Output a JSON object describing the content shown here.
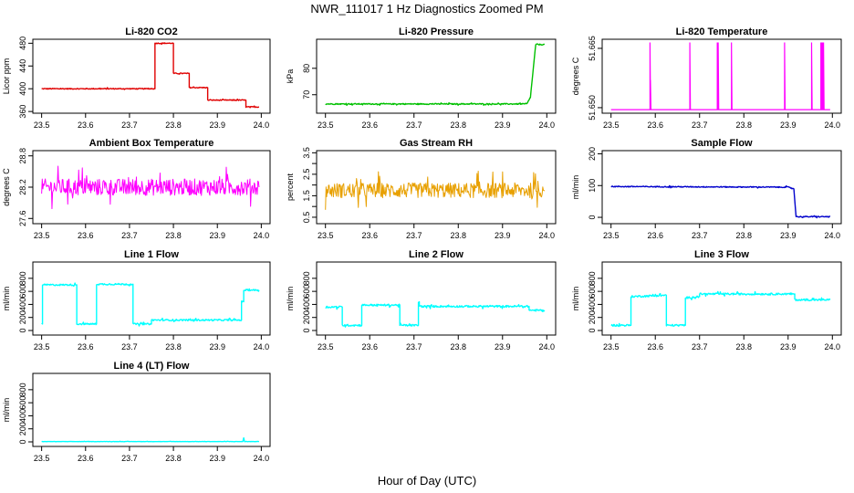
{
  "title": "NWR_111017  1 Hz Diagnostics Zoomed PM",
  "xlabel": "Hour of Day (UTC)",
  "colors": {
    "red": "#e00000",
    "green": "#00c000",
    "magenta": "#ff00ff",
    "orange": "#e8a000",
    "blue": "#0000cc",
    "cyan": "#00ffff"
  },
  "chart_data": [
    {
      "id": "co2",
      "type": "line",
      "title": "Li-820 CO2",
      "ylabel": "Licor ppm",
      "xlim": [
        23.5,
        24.0
      ],
      "ylim": [
        357,
        487
      ],
      "xticks": [
        "23.5",
        "23.6",
        "23.7",
        "23.8",
        "23.9",
        "24.0"
      ],
      "yticks": [
        {
          "v": 360,
          "label": "360"
        },
        {
          "v": 400,
          "label": "400"
        },
        {
          "v": 440,
          "label": "440"
        },
        {
          "v": 480,
          "label": "480"
        }
      ],
      "color": "red",
      "noise": 0.8,
      "series": [
        {
          "x": [
            23.5,
            23.758,
            23.758,
            23.8,
            23.8,
            23.836,
            23.836,
            23.878,
            23.878,
            23.965,
            23.965,
            23.995
          ],
          "y": [
            400,
            400,
            480,
            480,
            427,
            427,
            402,
            402,
            380,
            380,
            368,
            368
          ]
        }
      ]
    },
    {
      "id": "pressure",
      "type": "line",
      "title": "Li-820 Pressure",
      "ylabel": "kPa",
      "xlim": [
        23.5,
        24.0
      ],
      "ylim": [
        63,
        91
      ],
      "xticks": [
        "23.5",
        "23.6",
        "23.7",
        "23.8",
        "23.9",
        "24.0"
      ],
      "yticks": [
        {
          "v": 70,
          "label": "70"
        },
        {
          "v": 80,
          "label": "80"
        }
      ],
      "color": "green",
      "noise": 0.2,
      "series": [
        {
          "x": [
            23.5,
            23.955,
            23.963,
            23.975,
            23.995
          ],
          "y": [
            66.5,
            66.5,
            69,
            89,
            89
          ]
        }
      ]
    },
    {
      "id": "licor_temp",
      "type": "line",
      "title": "Li-820 Temperature",
      "ylabel": "degrees C",
      "xlim": [
        23.5,
        24.0
      ],
      "ylim": [
        51.6486,
        51.6673
      ],
      "xticks": [
        "23.5",
        "23.6",
        "23.7",
        "23.8",
        "23.9",
        "24.0"
      ],
      "yticks": [
        {
          "v": 51.65,
          "label": "51.650"
        },
        {
          "v": 51.665,
          "label": "51.665"
        }
      ],
      "color": "magenta",
      "noise": 0,
      "baseline": 51.6495,
      "spikes": [
        {
          "x": 23.588,
          "y": 51.6665
        },
        {
          "x": 23.589,
          "y": 51.657
        },
        {
          "x": 23.678,
          "y": 51.6665
        },
        {
          "x": 23.74,
          "y": 51.6665
        },
        {
          "x": 23.742,
          "y": 51.6665
        },
        {
          "x": 23.772,
          "y": 51.6665
        },
        {
          "x": 23.892,
          "y": 51.6665
        },
        {
          "x": 23.953,
          "y": 51.6665
        },
        {
          "x": 23.974,
          "y": 51.6665
        },
        {
          "x": 23.976,
          "y": 51.6665
        },
        {
          "x": 23.978,
          "y": 51.6665
        },
        {
          "x": 23.98,
          "y": 51.6665
        }
      ]
    },
    {
      "id": "ambient_temp",
      "type": "line",
      "title": "Ambient Box Temperature",
      "ylabel": "degrees C",
      "xlim": [
        23.5,
        24.0
      ],
      "ylim": [
        27.5,
        28.9
      ],
      "xticks": [
        "23.5",
        "23.6",
        "23.7",
        "23.8",
        "23.9",
        "24.0"
      ],
      "yticks": [
        {
          "v": 27.6,
          "label": "27.6"
        },
        {
          "v": 28.2,
          "label": "28.2"
        },
        {
          "v": 28.8,
          "label": "28.8"
        }
      ],
      "color": "magenta",
      "noise": 0.16,
      "series": [
        {
          "x": [
            23.5,
            23.995
          ],
          "y": [
            28.2,
            28.2
          ]
        }
      ]
    },
    {
      "id": "rh",
      "type": "line",
      "title": "Gas Stream RH",
      "ylabel": "percent",
      "xlim": [
        23.5,
        24.0
      ],
      "ylim": [
        0.2,
        3.6
      ],
      "xticks": [
        "23.5",
        "23.6",
        "23.7",
        "23.8",
        "23.9",
        "24.0"
      ],
      "yticks": [
        {
          "v": 0.5,
          "label": "0.5"
        },
        {
          "v": 1.5,
          "label": "1.5"
        },
        {
          "v": 2.5,
          "label": "2.5"
        },
        {
          "v": 3.5,
          "label": "3.5"
        }
      ],
      "ytick_minor": [
        1.0,
        2.0,
        3.0
      ],
      "color": "orange",
      "noise": 0.35,
      "series": [
        {
          "x": [
            23.5,
            23.995
          ],
          "y": [
            1.75,
            1.75
          ]
        }
      ]
    },
    {
      "id": "sample_flow",
      "type": "line",
      "title": "Sample Flow",
      "ylabel": "ml/min",
      "xlim": [
        23.5,
        24.0
      ],
      "ylim": [
        -20,
        210
      ],
      "xticks": [
        "23.5",
        "23.6",
        "23.7",
        "23.8",
        "23.9",
        "24.0"
      ],
      "yticks": [
        {
          "v": 0,
          "label": "0"
        },
        {
          "v": 100,
          "label": "100"
        },
        {
          "v": 200,
          "label": "200"
        }
      ],
      "color": "blue",
      "noise": 1.5,
      "series": [
        {
          "x": [
            23.5,
            23.9,
            23.913,
            23.918,
            23.995
          ],
          "y": [
            97,
            95,
            90,
            2,
            2
          ]
        }
      ]
    },
    {
      "id": "line1",
      "type": "line",
      "title": "Line 1 Flow",
      "ylabel": "ml/min",
      "xlim": [
        23.5,
        24.0
      ],
      "ylim": [
        -70,
        1050
      ],
      "xticks": [
        "23.5",
        "23.6",
        "23.7",
        "23.8",
        "23.9",
        "24.0"
      ],
      "yticks": [
        {
          "v": 0,
          "label": "0"
        },
        {
          "v": 200,
          "label": "200"
        },
        {
          "v": 400,
          "label": "400"
        },
        {
          "v": 600,
          "label": "600"
        },
        {
          "v": 800,
          "label": "800"
        }
      ],
      "color": "cyan",
      "noise": 12,
      "series": [
        {
          "x": [
            23.5,
            23.502,
            23.502,
            23.58,
            23.58,
            23.625,
            23.625,
            23.708,
            23.708,
            23.75,
            23.75,
            23.955,
            23.955,
            23.96,
            23.96,
            23.995
          ],
          "y": [
            100,
            100,
            700,
            700,
            100,
            100,
            710,
            710,
            100,
            100,
            160,
            160,
            440,
            440,
            620,
            620
          ]
        }
      ]
    },
    {
      "id": "line2",
      "type": "line",
      "title": "Line 2 Flow",
      "ylabel": "ml/min",
      "xlim": [
        23.5,
        24.0
      ],
      "ylim": [
        -70,
        1050
      ],
      "xticks": [
        "23.5",
        "23.6",
        "23.7",
        "23.8",
        "23.9",
        "24.0"
      ],
      "yticks": [
        {
          "v": 0,
          "label": "0"
        },
        {
          "v": 200,
          "label": "200"
        },
        {
          "v": 400,
          "label": "400"
        },
        {
          "v": 600,
          "label": "600"
        },
        {
          "v": 800,
          "label": "800"
        }
      ],
      "color": "cyan",
      "noise": 14,
      "series": [
        {
          "x": [
            23.5,
            23.538,
            23.538,
            23.582,
            23.582,
            23.668,
            23.668,
            23.71,
            23.71,
            23.712,
            23.712,
            23.96,
            23.96,
            23.995
          ],
          "y": [
            360,
            360,
            80,
            80,
            390,
            390,
            80,
            80,
            440,
            440,
            370,
            370,
            310,
            310
          ]
        }
      ]
    },
    {
      "id": "line3",
      "type": "line",
      "title": "Line 3 Flow",
      "ylabel": "ml/min",
      "xlim": [
        23.5,
        24.0
      ],
      "ylim": [
        -70,
        1050
      ],
      "xticks": [
        "23.5",
        "23.6",
        "23.7",
        "23.8",
        "23.9",
        "24.0"
      ],
      "yticks": [
        {
          "v": 0,
          "label": "0"
        },
        {
          "v": 200,
          "label": "200"
        },
        {
          "v": 400,
          "label": "400"
        },
        {
          "v": 600,
          "label": "600"
        },
        {
          "v": 800,
          "label": "800"
        }
      ],
      "color": "cyan",
      "noise": 14,
      "series": [
        {
          "x": [
            23.5,
            23.502,
            23.502,
            23.545,
            23.545,
            23.625,
            23.625,
            23.668,
            23.668,
            23.7,
            23.7,
            23.915,
            23.915,
            23.995
          ],
          "y": [
            80,
            80,
            80,
            80,
            520,
            540,
            80,
            80,
            500,
            520,
            560,
            560,
            470,
            470
          ]
        }
      ]
    },
    {
      "id": "line4",
      "type": "line",
      "title": "Line 4 (LT) Flow",
      "ylabel": "ml/min",
      "xlim": [
        23.5,
        24.0
      ],
      "ylim": [
        -70,
        1050
      ],
      "xticks": [
        "23.5",
        "23.6",
        "23.7",
        "23.8",
        "23.9",
        "24.0"
      ],
      "yticks": [
        {
          "v": 0,
          "label": "0"
        },
        {
          "v": 200,
          "label": "200"
        },
        {
          "v": 400,
          "label": "400"
        },
        {
          "v": 600,
          "label": "600"
        },
        {
          "v": 800,
          "label": "800"
        }
      ],
      "color": "cyan",
      "noise": 2,
      "series": [
        {
          "x": [
            23.5,
            23.958,
            23.96,
            23.962,
            23.995
          ],
          "y": [
            5,
            5,
            60,
            5,
            5
          ]
        }
      ]
    }
  ]
}
